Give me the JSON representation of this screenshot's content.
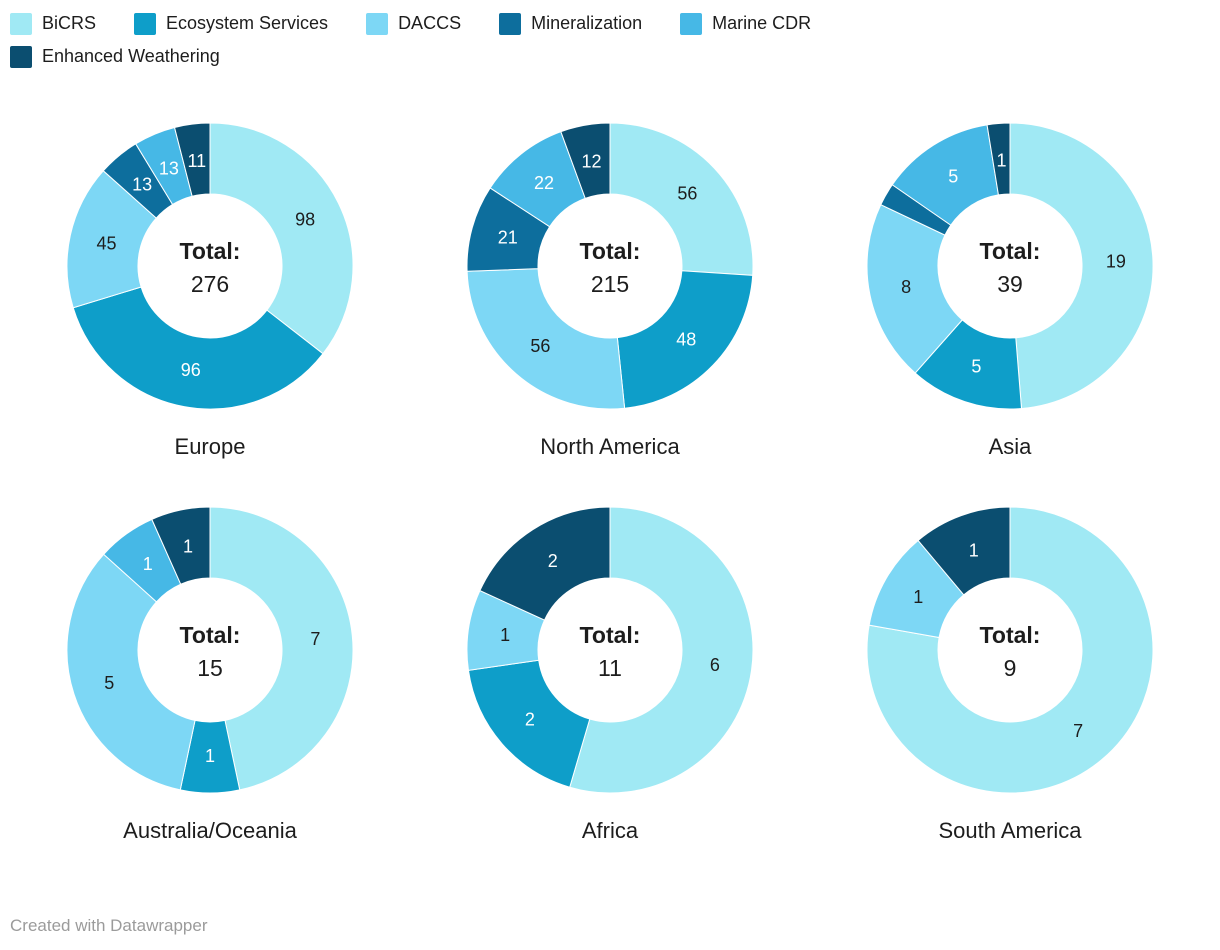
{
  "legend": {
    "items": [
      {
        "label": "BiCRS",
        "color": "#a0e9f4"
      },
      {
        "label": "Ecosystem Services",
        "color": "#0e9ec9"
      },
      {
        "label": "DACCS",
        "color": "#7dd7f5"
      },
      {
        "label": "Mineralization",
        "color": "#0d6e9d"
      },
      {
        "label": "Marine CDR",
        "color": "#46b8e6"
      },
      {
        "label": "Enhanced Weathering",
        "color": "#0b4e70"
      }
    ]
  },
  "chart_data": {
    "type": "pie",
    "variant": "donut",
    "legend_position": "top-left",
    "categories": [
      "BiCRS",
      "Ecosystem Services",
      "DACCS",
      "Mineralization",
      "Marine CDR",
      "Enhanced Weathering"
    ],
    "colors": [
      "#a0e9f4",
      "#0e9ec9",
      "#7dd7f5",
      "#0d6e9d",
      "#46b8e6",
      "#0b4e70"
    ],
    "label_colors": [
      "#1d1d1d",
      "#ffffff",
      "#1d1d1d",
      "#ffffff",
      "#ffffff",
      "#ffffff"
    ],
    "center_label": "Total:",
    "charts": [
      {
        "title": "Europe",
        "total": 276,
        "values": [
          98,
          96,
          45,
          13,
          13,
          11
        ],
        "label_values": [
          "98",
          "96",
          "45",
          "13",
          "13",
          "11"
        ]
      },
      {
        "title": "North America",
        "total": 215,
        "values": [
          56,
          48,
          56,
          21,
          22,
          12
        ],
        "label_values": [
          "56",
          "48",
          "56",
          "21",
          "22",
          "12"
        ]
      },
      {
        "title": "Asia",
        "total": 39,
        "values": [
          19,
          5,
          8,
          1,
          5,
          1
        ],
        "label_values": [
          "19",
          "5",
          "8",
          "",
          "5",
          "1"
        ]
      },
      {
        "title": "Australia/Oceania",
        "total": 15,
        "values": [
          7,
          1,
          5,
          0,
          1,
          1
        ],
        "label_values": [
          "7",
          "1",
          "5",
          "",
          "1",
          "1"
        ]
      },
      {
        "title": "Africa",
        "total": 11,
        "values": [
          6,
          2,
          1,
          0,
          0,
          2
        ],
        "label_values": [
          "6",
          "2",
          "1",
          "",
          "",
          "2"
        ]
      },
      {
        "title": "South America",
        "total": 9,
        "values": [
          7,
          0,
          1,
          0,
          0,
          1
        ],
        "label_values": [
          "7",
          "",
          "1",
          "",
          "",
          "1"
        ]
      }
    ]
  },
  "footer": {
    "credit": "Created with Datawrapper"
  }
}
